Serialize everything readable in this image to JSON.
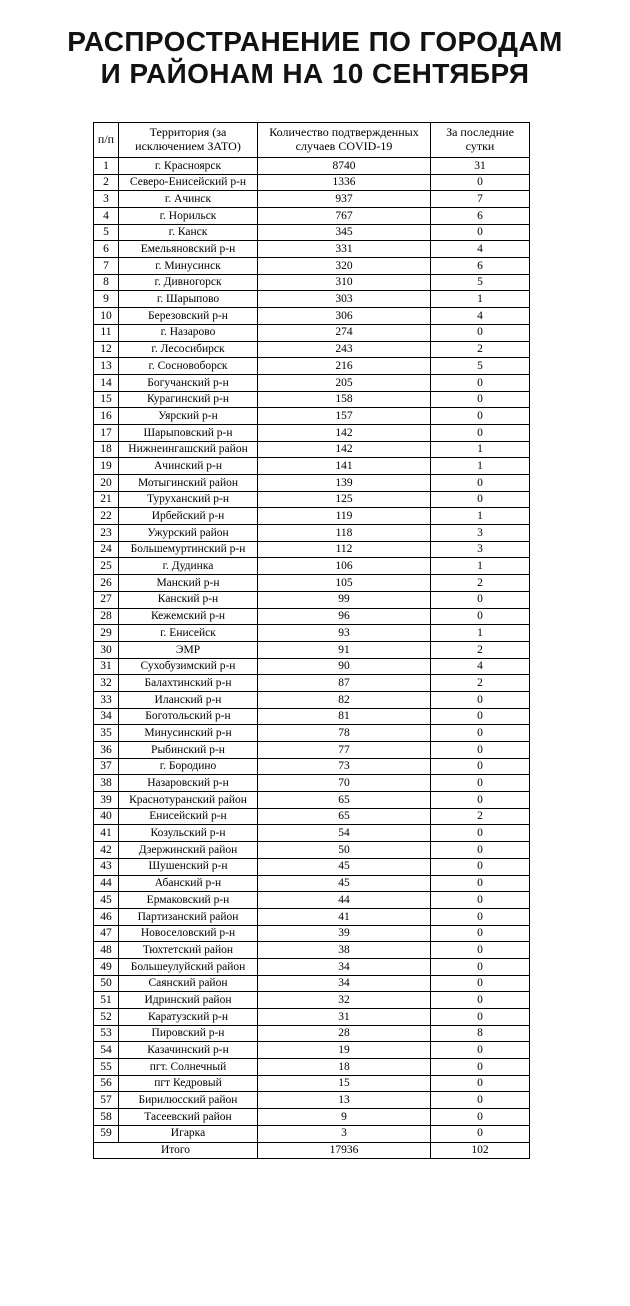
{
  "title": {
    "line1": "РАСПРОСТРАНЕНИЕ ПО ГОРОДАМ",
    "line2": "И РАЙОНАМ НА 10 СЕНТЯБРЯ"
  },
  "colors": {
    "background": "#ffffff",
    "text": "#000000",
    "border": "#000000"
  },
  "table": {
    "headers": [
      "п/п",
      "Территория (за исключением ЗАТО)",
      "Количество подтвержденных случаев COVID-19",
      "За последние сутки"
    ],
    "rows": [
      [
        "1",
        "г. Красноярск",
        "8740",
        "31"
      ],
      [
        "2",
        "Северо-Енисейский р-н",
        "1336",
        "0"
      ],
      [
        "3",
        "г. Ачинск",
        "937",
        "7"
      ],
      [
        "4",
        "г. Норильск",
        "767",
        "6"
      ],
      [
        "5",
        "г. Канск",
        "345",
        "0"
      ],
      [
        "6",
        "Емельяновский р-н",
        "331",
        "4"
      ],
      [
        "7",
        "г. Минусинск",
        "320",
        "6"
      ],
      [
        "8",
        "г. Дивногорск",
        "310",
        "5"
      ],
      [
        "9",
        "г. Шарыпово",
        "303",
        "1"
      ],
      [
        "10",
        "Березовский р-н",
        "306",
        "4"
      ],
      [
        "11",
        "г. Назарово",
        "274",
        "0"
      ],
      [
        "12",
        "г. Лесосибирск",
        "243",
        "2"
      ],
      [
        "13",
        "г. Сосновоборск",
        "216",
        "5"
      ],
      [
        "14",
        "Богучанский р-н",
        "205",
        "0"
      ],
      [
        "15",
        "Курагинский р-н",
        "158",
        "0"
      ],
      [
        "16",
        "Уярский р-н",
        "157",
        "0"
      ],
      [
        "17",
        "Шарыповский р-н",
        "142",
        "0"
      ],
      [
        "18",
        "Нижнеингашский район",
        "142",
        "1"
      ],
      [
        "19",
        "Ачинский р-н",
        "141",
        "1"
      ],
      [
        "20",
        "Мотыгинский район",
        "139",
        "0"
      ],
      [
        "21",
        "Туруханский р-н",
        "125",
        "0"
      ],
      [
        "22",
        "Ирбейский р-н",
        "119",
        "1"
      ],
      [
        "23",
        "Ужурский район",
        "118",
        "3"
      ],
      [
        "24",
        "Большемуртинский р-н",
        "112",
        "3"
      ],
      [
        "25",
        "г. Дудинка",
        "106",
        "1"
      ],
      [
        "26",
        "Манский р-н",
        "105",
        "2"
      ],
      [
        "27",
        "Канский р-н",
        "99",
        "0"
      ],
      [
        "28",
        "Кежемский р-н",
        "96",
        "0"
      ],
      [
        "29",
        "г. Енисейск",
        "93",
        "1"
      ],
      [
        "30",
        "ЭМР",
        "91",
        "2"
      ],
      [
        "31",
        "Сухобузимский р-н",
        "90",
        "4"
      ],
      [
        "32",
        "Балахтинский р-н",
        "87",
        "2"
      ],
      [
        "33",
        "Иланский р-н",
        "82",
        "0"
      ],
      [
        "34",
        "Боготольский р-н",
        "81",
        "0"
      ],
      [
        "35",
        "Минусинский р-н",
        "78",
        "0"
      ],
      [
        "36",
        "Рыбинский р-н",
        "77",
        "0"
      ],
      [
        "37",
        "г. Бородино",
        "73",
        "0"
      ],
      [
        "38",
        "Назаровский р-н",
        "70",
        "0"
      ],
      [
        "39",
        "Краснотуранский район",
        "65",
        "0"
      ],
      [
        "40",
        "Енисейский р-н",
        "65",
        "2"
      ],
      [
        "41",
        "Козульский р-н",
        "54",
        "0"
      ],
      [
        "42",
        "Дзержинский район",
        "50",
        "0"
      ],
      [
        "43",
        "Шушенский р-н",
        "45",
        "0"
      ],
      [
        "44",
        "Абанский р-н",
        "45",
        "0"
      ],
      [
        "45",
        "Ермаковский р-н",
        "44",
        "0"
      ],
      [
        "46",
        "Партизанский район",
        "41",
        "0"
      ],
      [
        "47",
        "Новоселовский р-н",
        "39",
        "0"
      ],
      [
        "48",
        "Тюхтетский район",
        "38",
        "0"
      ],
      [
        "49",
        "Большеулуйский район",
        "34",
        "0"
      ],
      [
        "50",
        "Саянский район",
        "34",
        "0"
      ],
      [
        "51",
        "Идринский район",
        "32",
        "0"
      ],
      [
        "52",
        "Каратузский р-н",
        "31",
        "0"
      ],
      [
        "53",
        "Пировский р-н",
        "28",
        "8"
      ],
      [
        "54",
        "Казачинский р-н",
        "19",
        "0"
      ],
      [
        "55",
        "пгт. Солнечный",
        "18",
        "0"
      ],
      [
        "56",
        "пгт Кедровый",
        "15",
        "0"
      ],
      [
        "57",
        "Бирилюсский район",
        "13",
        "0"
      ],
      [
        "58",
        "Тасеевский район",
        "9",
        "0"
      ],
      [
        "59",
        "Игарка",
        "3",
        "0"
      ]
    ],
    "total": {
      "label": "Итого",
      "confirmed": "17936",
      "daily": "102"
    }
  }
}
